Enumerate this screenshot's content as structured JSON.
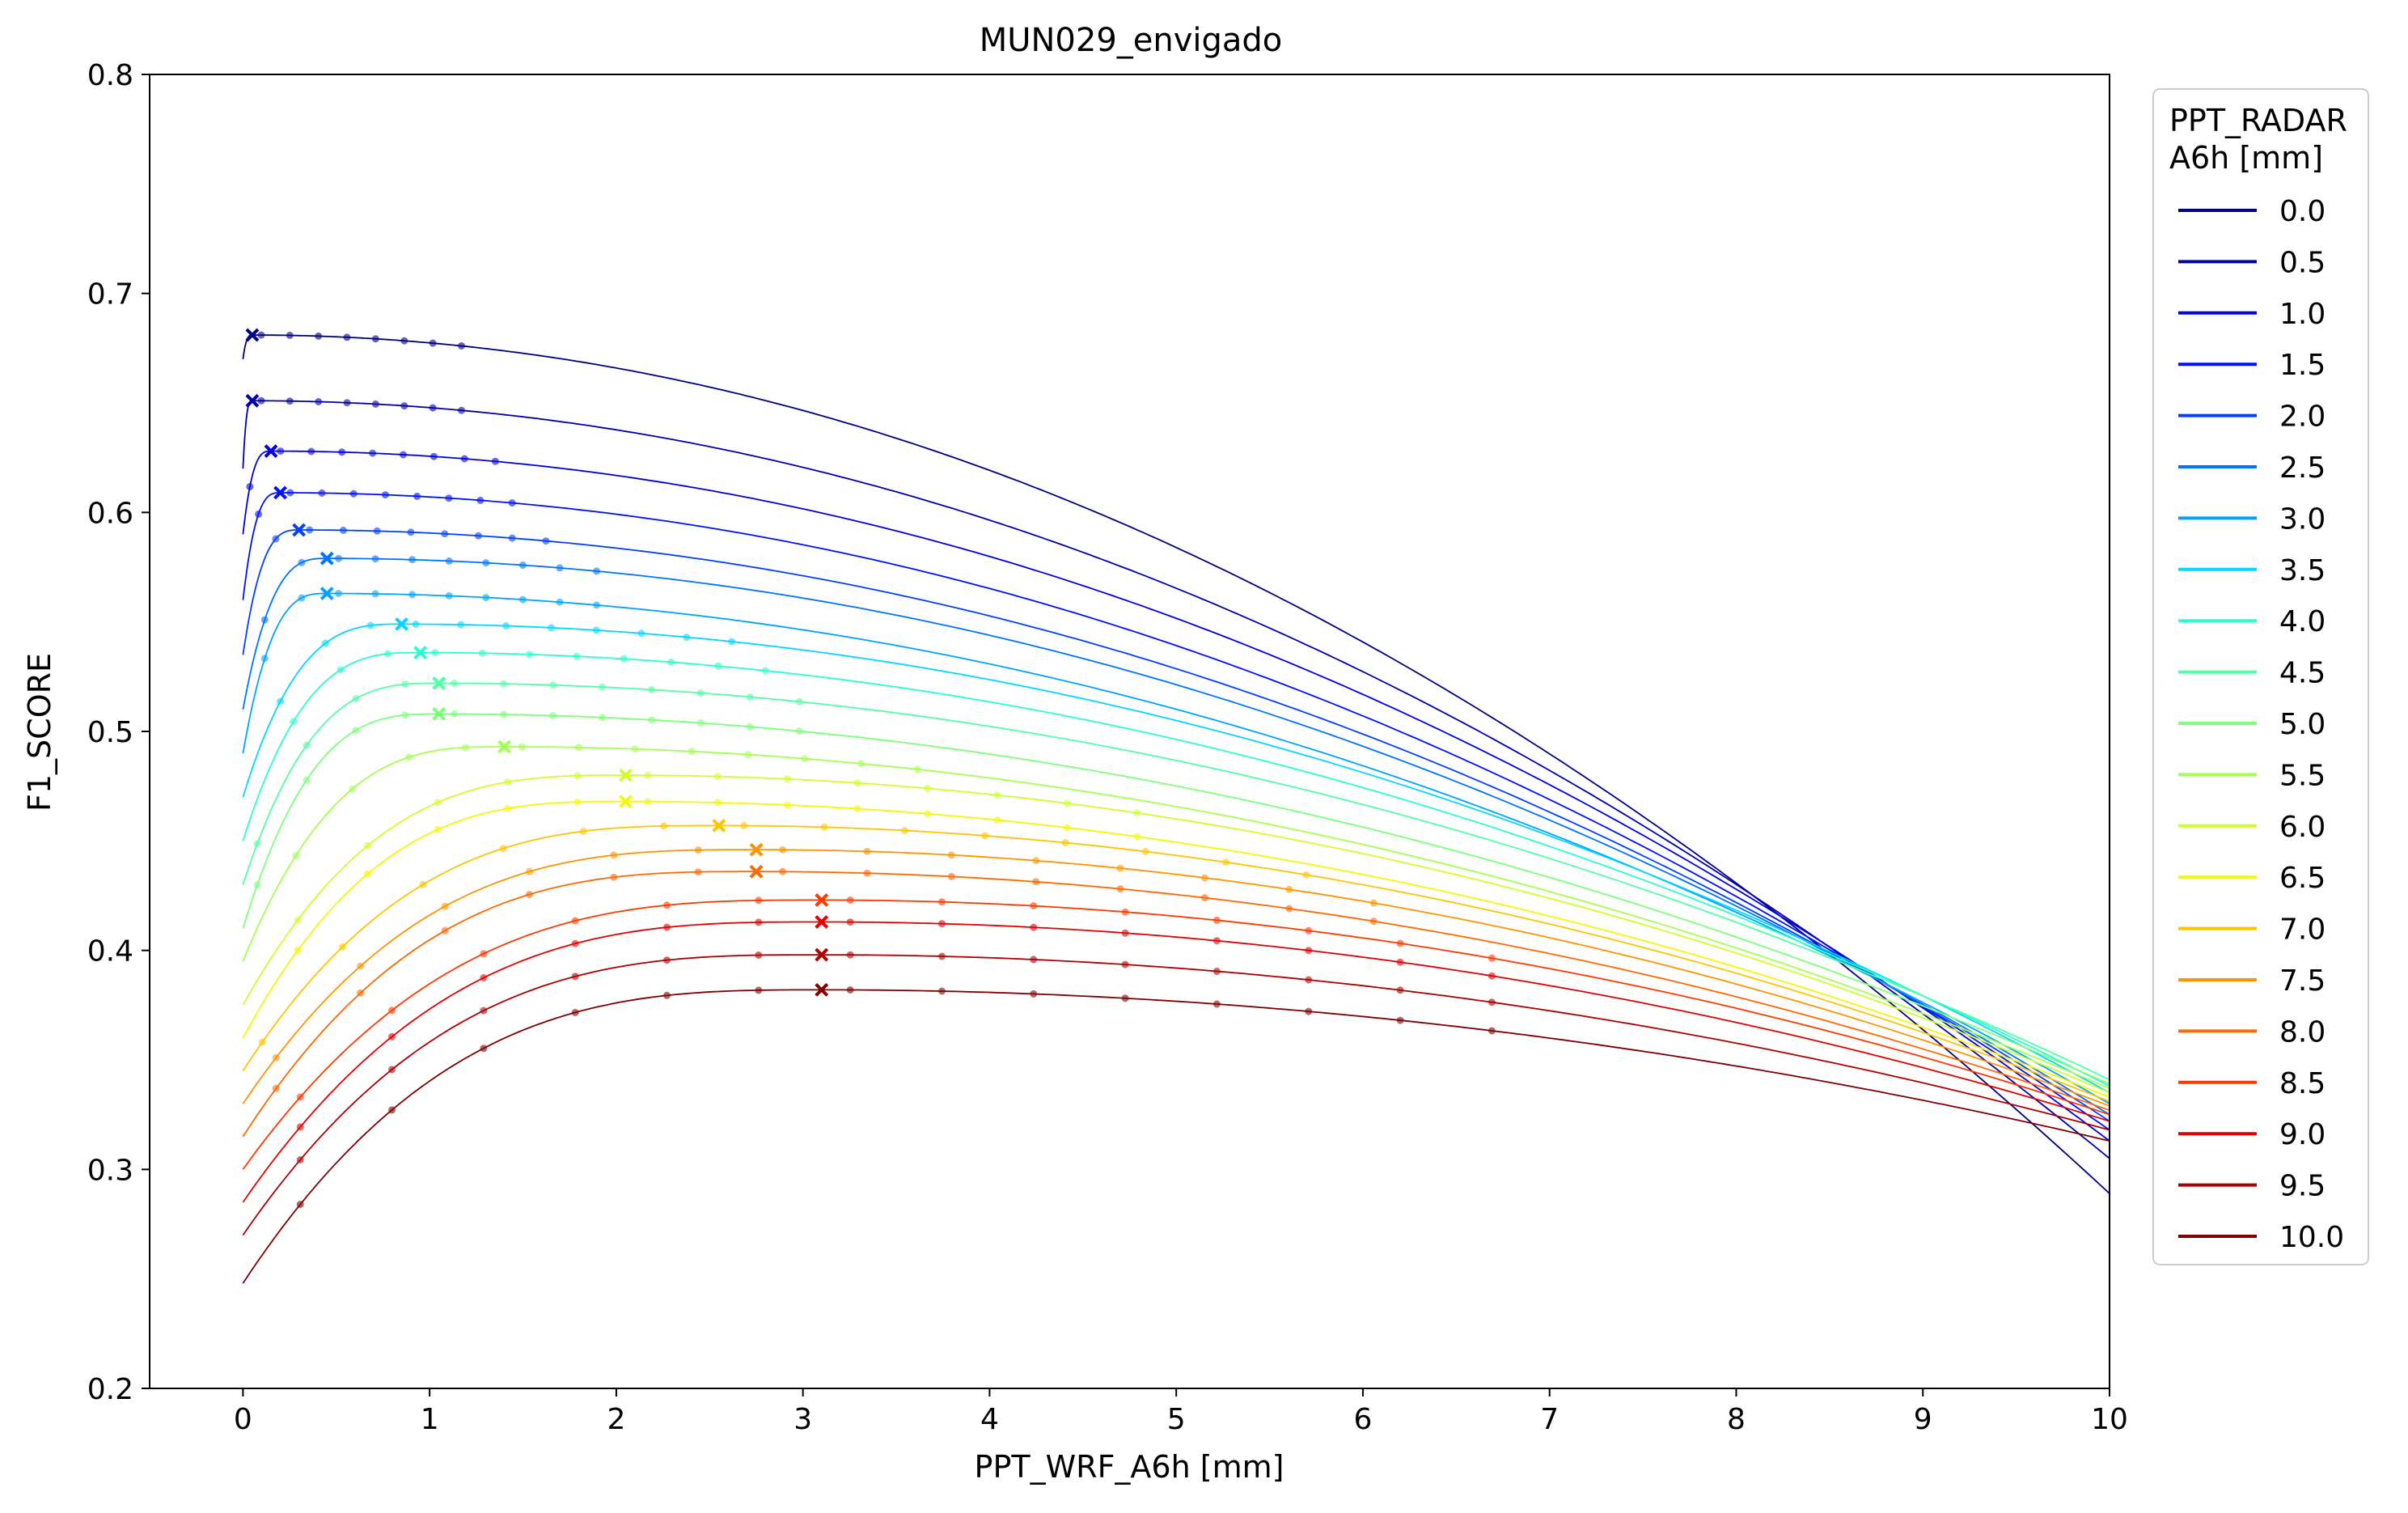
{
  "chart_data": {
    "type": "line",
    "title": "MUN029_envigado",
    "xlabel": "PPT_WRF_A6h [mm]",
    "ylabel": "F1_SCORE",
    "xlim": [
      -0.5,
      10
    ],
    "ylim": [
      0.2,
      0.8
    ],
    "xticks": [
      0,
      1,
      2,
      3,
      4,
      5,
      6,
      7,
      8,
      9,
      10
    ],
    "yticks": [
      0.2,
      0.3,
      0.4,
      0.5,
      0.6,
      0.7,
      0.8
    ],
    "grid": false,
    "legend": {
      "title_line1": "PPT_RADAR",
      "title_line2": "A6h [mm]",
      "placement": "outside-right-top"
    },
    "markers": {
      "sample_points": "dot",
      "optimum": "x"
    },
    "series": [
      {
        "name": "0.0",
        "color": "#00007f",
        "start": 0.67,
        "peak_x": 0.05,
        "peak": 0.681,
        "end": 0.289
      },
      {
        "name": "0.5",
        "color": "#0000a8",
        "start": 0.62,
        "peak_x": 0.05,
        "peak": 0.651,
        "end": 0.305
      },
      {
        "name": "1.0",
        "color": "#0000e3",
        "start": 0.59,
        "peak_x": 0.15,
        "peak": 0.628,
        "end": 0.313
      },
      {
        "name": "1.5",
        "color": "#0010ff",
        "start": 0.56,
        "peak_x": 0.2,
        "peak": 0.609,
        "end": 0.318
      },
      {
        "name": "2.0",
        "color": "#0040ff",
        "start": 0.535,
        "peak_x": 0.3,
        "peak": 0.592,
        "end": 0.322
      },
      {
        "name": "2.5",
        "color": "#0074ff",
        "start": 0.51,
        "peak_x": 0.45,
        "peak": 0.579,
        "end": 0.325
      },
      {
        "name": "3.0",
        "color": "#00a4ff",
        "start": 0.49,
        "peak_x": 0.45,
        "peak": 0.563,
        "end": 0.33
      },
      {
        "name": "3.5",
        "color": "#00d8ff",
        "start": 0.47,
        "peak_x": 0.85,
        "peak": 0.549,
        "end": 0.335
      },
      {
        "name": "4.0",
        "color": "#29ffce",
        "start": 0.45,
        "peak_x": 0.95,
        "peak": 0.536,
        "end": 0.338
      },
      {
        "name": "4.5",
        "color": "#53ffa4",
        "start": 0.43,
        "peak_x": 1.05,
        "peak": 0.522,
        "end": 0.341
      },
      {
        "name": "5.0",
        "color": "#7dff7a",
        "start": 0.41,
        "peak_x": 1.05,
        "peak": 0.508,
        "end": 0.339
      },
      {
        "name": "5.5",
        "color": "#a4ff53",
        "start": 0.395,
        "peak_x": 1.4,
        "peak": 0.493,
        "end": 0.337
      },
      {
        "name": "6.0",
        "color": "#ceff29",
        "start": 0.375,
        "peak_x": 2.05,
        "peak": 0.48,
        "end": 0.335
      },
      {
        "name": "6.5",
        "color": "#f4f802",
        "start": 0.36,
        "peak_x": 2.05,
        "peak": 0.468,
        "end": 0.333
      },
      {
        "name": "7.0",
        "color": "#ffc400",
        "start": 0.345,
        "peak_x": 2.55,
        "peak": 0.457,
        "end": 0.331
      },
      {
        "name": "7.5",
        "color": "#ff9400",
        "start": 0.33,
        "peak_x": 2.75,
        "peak": 0.446,
        "end": 0.329
      },
      {
        "name": "8.0",
        "color": "#ff6800",
        "start": 0.315,
        "peak_x": 2.75,
        "peak": 0.436,
        "end": 0.327
      },
      {
        "name": "8.5",
        "color": "#ff3800",
        "start": 0.3,
        "peak_x": 3.1,
        "peak": 0.423,
        "end": 0.325
      },
      {
        "name": "9.0",
        "color": "#e30000",
        "start": 0.285,
        "peak_x": 3.1,
        "peak": 0.413,
        "end": 0.322
      },
      {
        "name": "9.5",
        "color": "#ad0000",
        "start": 0.27,
        "peak_x": 3.1,
        "peak": 0.398,
        "end": 0.318
      },
      {
        "name": "10.0",
        "color": "#7f0000",
        "start": 0.248,
        "peak_x": 3.1,
        "peak": 0.382,
        "end": 0.313
      }
    ]
  }
}
